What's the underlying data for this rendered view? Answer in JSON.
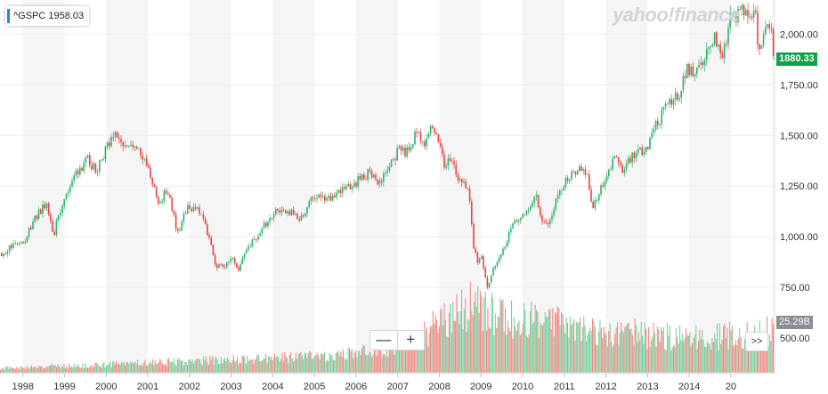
{
  "legend": {
    "symbol": "^GSPC",
    "value": "1958.03"
  },
  "watermark": "yahoo!finance",
  "controls": {
    "zoom_out": "—",
    "zoom_in": "+",
    "scroll_right": ">>"
  },
  "last_price_label": "1880.33",
  "volume_label": "25.29B",
  "colors": {
    "up": "#2db36b",
    "down": "#e94141",
    "volume_up": "#7ccfa0",
    "volume_down": "#f08b85",
    "band": "#f5f5f6",
    "price_tag": "#12a14b",
    "volume_tag": "#8b8f94",
    "legend_accent": "#1e88e5"
  },
  "chart_data": {
    "type": "candlestick",
    "title": "",
    "xlabel": "",
    "ylabel": "",
    "series": [
      {
        "name": "^GSPC"
      }
    ],
    "x_ticks": [
      "1998",
      "1999",
      "2000",
      "2001",
      "2002",
      "2003",
      "2004",
      "2005",
      "2006",
      "2007",
      "2008",
      "2009",
      "2010",
      "2011",
      "2012",
      "2013",
      "2014",
      "20"
    ],
    "y_ticks": [
      750,
      1000,
      1250,
      1500,
      1750,
      2000
    ],
    "y_tick_labels": [
      "750.00",
      "1,000.00",
      "1,250.00",
      "1,500.00",
      "1,750.00",
      "2,000.00"
    ],
    "ylim": [
      500,
      2250
    ],
    "xlim": [
      1997.45,
      2016.05
    ],
    "grid": true,
    "y_axis_side": "right",
    "price_path": [
      [
        1997.5,
        920
      ],
      [
        1997.8,
        960
      ],
      [
        1998.0,
        975
      ],
      [
        1998.3,
        1100
      ],
      [
        1998.55,
        1170
      ],
      [
        1998.72,
        1000
      ],
      [
        1998.85,
        1120
      ],
      [
        1999.1,
        1240
      ],
      [
        1999.3,
        1320
      ],
      [
        1999.55,
        1380
      ],
      [
        1999.75,
        1320
      ],
      [
        2000.0,
        1450
      ],
      [
        2000.25,
        1500
      ],
      [
        2000.45,
        1440
      ],
      [
        2000.7,
        1470
      ],
      [
        2000.85,
        1400
      ],
      [
        2001.0,
        1330
      ],
      [
        2001.25,
        1160
      ],
      [
        2001.45,
        1240
      ],
      [
        2001.7,
        1020
      ],
      [
        2001.95,
        1150
      ],
      [
        2002.2,
        1130
      ],
      [
        2002.45,
        1000
      ],
      [
        2002.6,
        860
      ],
      [
        2002.8,
        850
      ],
      [
        2002.95,
        900
      ],
      [
        2003.15,
        840
      ],
      [
        2003.4,
        960
      ],
      [
        2003.6,
        1000
      ],
      [
        2003.95,
        1100
      ],
      [
        2004.1,
        1140
      ],
      [
        2004.4,
        1120
      ],
      [
        2004.6,
        1090
      ],
      [
        2004.85,
        1160
      ],
      [
        2005.0,
        1200
      ],
      [
        2005.3,
        1180
      ],
      [
        2005.6,
        1230
      ],
      [
        2005.9,
        1250
      ],
      [
        2006.1,
        1290
      ],
      [
        2006.35,
        1320
      ],
      [
        2006.5,
        1250
      ],
      [
        2006.75,
        1330
      ],
      [
        2007.0,
        1430
      ],
      [
        2007.2,
        1420
      ],
      [
        2007.45,
        1520
      ],
      [
        2007.6,
        1460
      ],
      [
        2007.8,
        1540
      ],
      [
        2007.95,
        1470
      ],
      [
        2008.1,
        1350
      ],
      [
        2008.3,
        1380
      ],
      [
        2008.45,
        1280
      ],
      [
        2008.6,
        1260
      ],
      [
        2008.72,
        1180
      ],
      [
        2008.8,
        950
      ],
      [
        2008.92,
        870
      ],
      [
        2009.0,
        900
      ],
      [
        2009.15,
        740
      ],
      [
        2009.3,
        860
      ],
      [
        2009.5,
        930
      ],
      [
        2009.75,
        1060
      ],
      [
        2010.0,
        1115
      ],
      [
        2010.3,
        1200
      ],
      [
        2010.45,
        1070
      ],
      [
        2010.6,
        1070
      ],
      [
        2010.8,
        1180
      ],
      [
        2011.0,
        1280
      ],
      [
        2011.3,
        1340
      ],
      [
        2011.55,
        1300
      ],
      [
        2011.65,
        1130
      ],
      [
        2011.9,
        1250
      ],
      [
        2012.2,
        1400
      ],
      [
        2012.4,
        1320
      ],
      [
        2012.6,
        1400
      ],
      [
        2012.8,
        1430
      ],
      [
        2012.95,
        1420
      ],
      [
        2013.2,
        1560
      ],
      [
        2013.45,
        1640
      ],
      [
        2013.75,
        1700
      ],
      [
        2013.95,
        1840
      ],
      [
        2014.1,
        1790
      ],
      [
        2014.4,
        1920
      ],
      [
        2014.6,
        1980
      ],
      [
        2014.8,
        1890
      ],
      [
        2014.95,
        2070
      ],
      [
        2015.2,
        2110
      ],
      [
        2015.45,
        2100
      ],
      [
        2015.6,
        2070
      ],
      [
        2015.65,
        1900
      ],
      [
        2015.8,
        2070
      ],
      [
        2015.95,
        2040
      ],
      [
        2016.02,
        1880
      ]
    ],
    "volume_path": [
      [
        1997.5,
        0.06
      ],
      [
        1998.5,
        0.08
      ],
      [
        1999.5,
        0.1
      ],
      [
        2000.5,
        0.13
      ],
      [
        2001.5,
        0.15
      ],
      [
        2002.5,
        0.17
      ],
      [
        2003.5,
        0.19
      ],
      [
        2004.5,
        0.21
      ],
      [
        2005.5,
        0.24
      ],
      [
        2006.5,
        0.3
      ],
      [
        2007.3,
        0.4
      ],
      [
        2007.6,
        0.55
      ],
      [
        2008.0,
        0.7
      ],
      [
        2008.8,
        0.95
      ],
      [
        2009.3,
        0.8
      ],
      [
        2009.9,
        0.7
      ],
      [
        2010.5,
        0.72
      ],
      [
        2011.5,
        0.62
      ],
      [
        2012.5,
        0.55
      ],
      [
        2013.5,
        0.5
      ],
      [
        2014.5,
        0.5
      ],
      [
        2015.5,
        0.52
      ],
      [
        2016.05,
        0.6
      ]
    ]
  }
}
